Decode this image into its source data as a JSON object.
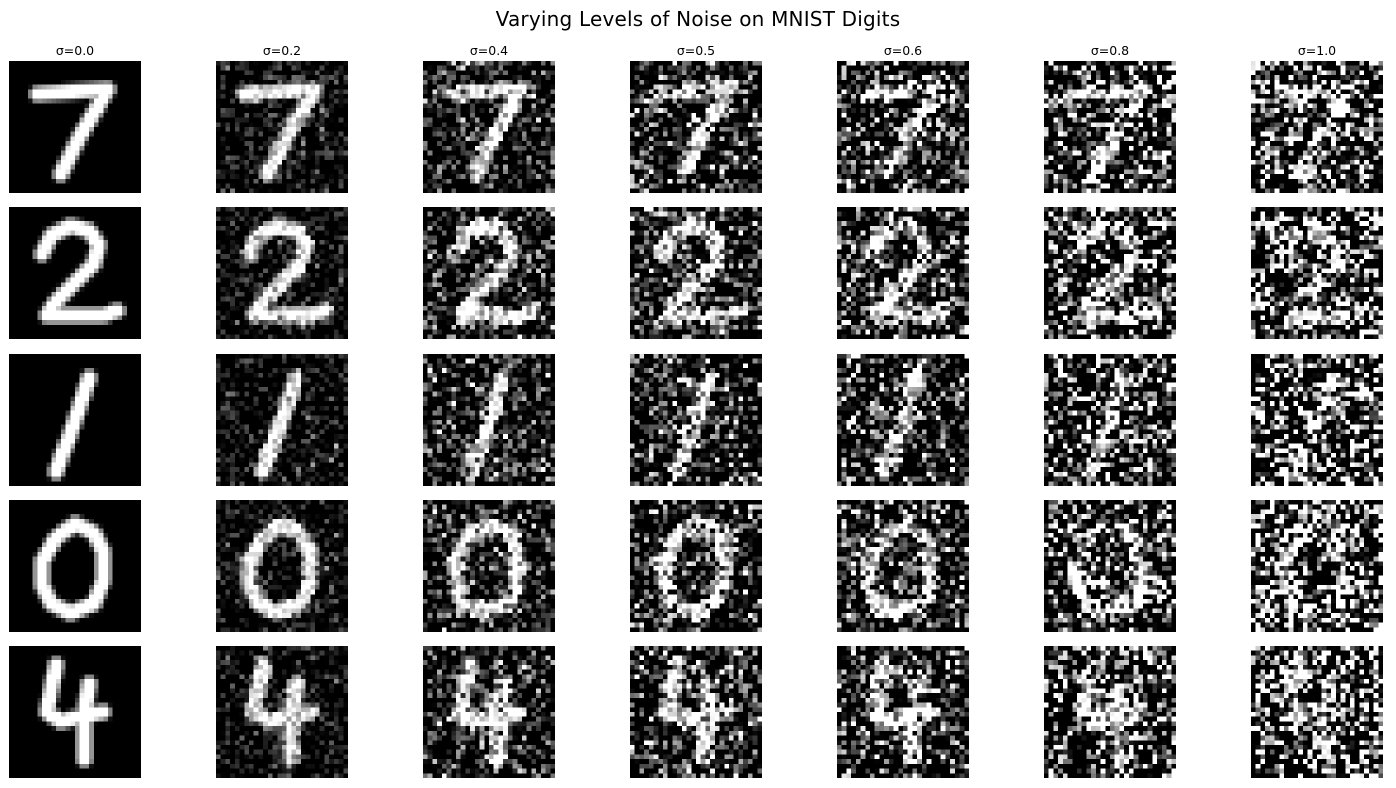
{
  "title": "Varying Levels of Noise on MNIST Digits",
  "sigmas": [
    {
      "label": "σ=0.0",
      "value": 0.0
    },
    {
      "label": "σ=0.2",
      "value": 0.2
    },
    {
      "label": "σ=0.4",
      "value": 0.4
    },
    {
      "label": "σ=0.5",
      "value": 0.5
    },
    {
      "label": "σ=0.6",
      "value": 0.6
    },
    {
      "label": "σ=0.8",
      "value": 0.8
    },
    {
      "label": "σ=1.0",
      "value": 1.0
    }
  ],
  "digits": [
    "7",
    "2",
    "1",
    "0",
    "4"
  ],
  "colormap": {
    "low": "#000000",
    "high": "#ffffff"
  }
}
